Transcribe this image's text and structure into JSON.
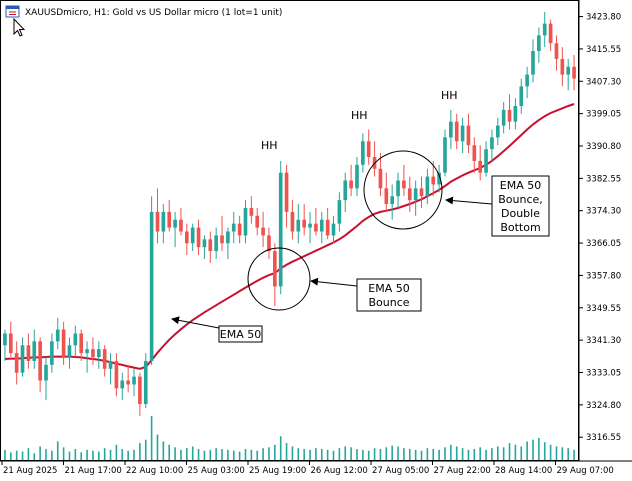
{
  "window": {
    "title": "XAUUSDmicro, H1:  Gold vs US Dollar micro (1 lot=1 unit)",
    "icon": "chart-window-icon",
    "cursor": "mouse-pointer-icon"
  },
  "colors": {
    "bull": "#26a69a",
    "bear": "#ef5350",
    "ema": "#c8102e",
    "volume": "#26a69a",
    "axis": "#000000",
    "background": "#ffffff"
  },
  "chart_data": {
    "type": "candlestick",
    "symbol": "XAUUSDmicro",
    "timeframe": "H1",
    "ylim": [
      3311.0,
      3427.0
    ],
    "y_ticks": [
      "3423.80",
      "3415.55",
      "3407.30",
      "3399.05",
      "3390.80",
      "3382.55",
      "3374.30",
      "3366.05",
      "3357.80",
      "3349.55",
      "3341.30",
      "3333.05",
      "3324.80",
      "3316.55"
    ],
    "x_ticks": [
      "21 Aug 2025",
      "21 Aug 17:00",
      "22 Aug 10:00",
      "25 Aug 03:00",
      "25 Aug 19:00",
      "26 Aug 12:00",
      "27 Aug 05:00",
      "27 Aug 22:00",
      "28 Aug 14:00",
      "29 Aug 07:00"
    ],
    "candles": [
      [
        3340,
        3344,
        3336,
        3343
      ],
      [
        3343,
        3346,
        3337,
        3338
      ],
      [
        3338,
        3341,
        3330,
        3333
      ],
      [
        3333,
        3342,
        3332,
        3340
      ],
      [
        3340,
        3343,
        3334,
        3336
      ],
      [
        3336,
        3344,
        3334,
        3341
      ],
      [
        3341,
        3342,
        3328,
        3331
      ],
      [
        3331,
        3337,
        3326,
        3335
      ],
      [
        3335,
        3343,
        3333,
        3341
      ],
      [
        3341,
        3347,
        3339,
        3344
      ],
      [
        3344,
        3346,
        3335,
        3337
      ],
      [
        3337,
        3342,
        3334,
        3340
      ],
      [
        3340,
        3345,
        3337,
        3343
      ],
      [
        3343,
        3344,
        3336,
        3338
      ],
      [
        3338,
        3341,
        3333,
        3339
      ],
      [
        3339,
        3342,
        3335,
        3337
      ],
      [
        3337,
        3341,
        3334,
        3339
      ],
      [
        3339,
        3340,
        3332,
        3334
      ],
      [
        3334,
        3338,
        3330,
        3336
      ],
      [
        3336,
        3338,
        3327,
        3329
      ],
      [
        3329,
        3333,
        3326,
        3331
      ],
      [
        3331,
        3335,
        3328,
        3330
      ],
      [
        3330,
        3334,
        3327,
        3332
      ],
      [
        3332,
        3333,
        3322,
        3325
      ],
      [
        3325,
        3338,
        3324,
        3336
      ],
      [
        3336,
        3378,
        3335,
        3374
      ],
      [
        3374,
        3380,
        3366,
        3369
      ],
      [
        3369,
        3376,
        3366,
        3374
      ],
      [
        3374,
        3377,
        3369,
        3370
      ],
      [
        3370,
        3374,
        3365,
        3372
      ],
      [
        3372,
        3375,
        3368,
        3369
      ],
      [
        3369,
        3371,
        3363,
        3366
      ],
      [
        3366,
        3371,
        3364,
        3370
      ],
      [
        3370,
        3372,
        3363,
        3365
      ],
      [
        3365,
        3368,
        3362,
        3367
      ],
      [
        3367,
        3369,
        3361,
        3364
      ],
      [
        3364,
        3370,
        3362,
        3368
      ],
      [
        3368,
        3373,
        3364,
        3366
      ],
      [
        3366,
        3370,
        3362,
        3369
      ],
      [
        3369,
        3374,
        3366,
        3371
      ],
      [
        3371,
        3373,
        3366,
        3368
      ],
      [
        3368,
        3377,
        3366,
        3375
      ],
      [
        3375,
        3378,
        3371,
        3373
      ],
      [
        3373,
        3375,
        3368,
        3370
      ],
      [
        3370,
        3374,
        3365,
        3368
      ],
      [
        3368,
        3370,
        3362,
        3364
      ],
      [
        3364,
        3366,
        3350,
        3355
      ],
      [
        3355,
        3387,
        3353,
        3384
      ],
      [
        3384,
        3386,
        3370,
        3374
      ],
      [
        3374,
        3377,
        3367,
        3369
      ],
      [
        3369,
        3376,
        3366,
        3372
      ],
      [
        3372,
        3376,
        3368,
        3370
      ],
      [
        3370,
        3374,
        3366,
        3371
      ],
      [
        3371,
        3375,
        3368,
        3369
      ],
      [
        3369,
        3374,
        3366,
        3372
      ],
      [
        3372,
        3375,
        3367,
        3368
      ],
      [
        3368,
        3373,
        3366,
        3371
      ],
      [
        3371,
        3379,
        3369,
        3377
      ],
      [
        3377,
        3384,
        3374,
        3382
      ],
      [
        3382,
        3386,
        3378,
        3380
      ],
      [
        3380,
        3388,
        3378,
        3386
      ],
      [
        3386,
        3394,
        3384,
        3392
      ],
      [
        3392,
        3395,
        3386,
        3388
      ],
      [
        3388,
        3392,
        3383,
        3385
      ],
      [
        3385,
        3389,
        3378,
        3380
      ],
      [
        3380,
        3384,
        3374,
        3376
      ],
      [
        3376,
        3381,
        3372,
        3378
      ],
      [
        3378,
        3384,
        3375,
        3382
      ],
      [
        3382,
        3386,
        3378,
        3380
      ],
      [
        3380,
        3383,
        3374,
        3377
      ],
      [
        3377,
        3382,
        3373,
        3380
      ],
      [
        3380,
        3383,
        3375,
        3378
      ],
      [
        3378,
        3385,
        3376,
        3383
      ],
      [
        3383,
        3387,
        3378,
        3381
      ],
      [
        3381,
        3386,
        3379,
        3384
      ],
      [
        3384,
        3395,
        3383,
        3393
      ],
      [
        3393,
        3400,
        3390,
        3397
      ],
      [
        3397,
        3399,
        3390,
        3392
      ],
      [
        3392,
        3398,
        3389,
        3396
      ],
      [
        3396,
        3399,
        3389,
        3391
      ],
      [
        3391,
        3393,
        3384,
        3387
      ],
      [
        3387,
        3391,
        3382,
        3384
      ],
      [
        3384,
        3392,
        3383,
        3390
      ],
      [
        3390,
        3395,
        3387,
        3393
      ],
      [
        3393,
        3398,
        3391,
        3396
      ],
      [
        3396,
        3402,
        3394,
        3400
      ],
      [
        3400,
        3404,
        3395,
        3397
      ],
      [
        3397,
        3403,
        3395,
        3401
      ],
      [
        3401,
        3408,
        3399,
        3406
      ],
      [
        3406,
        3411,
        3403,
        3409
      ],
      [
        3409,
        3418,
        3407,
        3415
      ],
      [
        3415,
        3421,
        3412,
        3419
      ],
      [
        3419,
        3425,
        3416,
        3422
      ],
      [
        3422,
        3423,
        3415,
        3417
      ],
      [
        3417,
        3419,
        3410,
        3413
      ],
      [
        3413,
        3416,
        3406,
        3409
      ],
      [
        3409,
        3413,
        3405,
        3411
      ],
      [
        3411,
        3414,
        3405,
        3408
      ]
    ],
    "ema_50": [
      3336.5,
      3336.6,
      3336.6,
      3336.7,
      3336.8,
      3336.9,
      3336.9,
      3337.0,
      3337.1,
      3337.1,
      3337.1,
      3337.1,
      3337.0,
      3336.9,
      3336.7,
      3336.5,
      3336.3,
      3336.0,
      3335.7,
      3335.3,
      3335.0,
      3334.6,
      3334.3,
      3334.0,
      3334.5,
      3336.2,
      3338.1,
      3339.8,
      3341.4,
      3342.8,
      3344.1,
      3345.3,
      3346.4,
      3347.4,
      3348.4,
      3349.3,
      3350.2,
      3351.1,
      3352.0,
      3352.9,
      3353.8,
      3354.7,
      3355.6,
      3356.4,
      3357.2,
      3357.9,
      3358.4,
      3359.6,
      3360.5,
      3361.3,
      3362.0,
      3362.7,
      3363.4,
      3364.1,
      3364.8,
      3365.5,
      3366.2,
      3367.0,
      3368.0,
      3369.2,
      3370.4,
      3371.7,
      3372.7,
      3373.5,
      3374.0,
      3374.3,
      3374.6,
      3375.0,
      3375.5,
      3376.0,
      3376.6,
      3377.2,
      3378.0,
      3378.8,
      3379.6,
      3380.6,
      3381.7,
      3382.5,
      3383.3,
      3384.0,
      3384.6,
      3385.2,
      3386.0,
      3387.0,
      3388.2,
      3389.5,
      3390.8,
      3392.2,
      3393.6,
      3395.0,
      3396.3,
      3397.4,
      3398.4,
      3399.2,
      3399.8,
      3400.4,
      3401.0,
      3401.5
    ],
    "volume": [
      12,
      9,
      11,
      10,
      14,
      8,
      16,
      13,
      11,
      22,
      15,
      10,
      13,
      9,
      12,
      11,
      10,
      14,
      12,
      18,
      13,
      11,
      12,
      20,
      24,
      52,
      30,
      22,
      18,
      15,
      12,
      14,
      16,
      13,
      11,
      12,
      14,
      13,
      12,
      11,
      10,
      13,
      12,
      11,
      14,
      15,
      18,
      28,
      20,
      16,
      14,
      13,
      12,
      14,
      13,
      12,
      11,
      14,
      16,
      15,
      13,
      12,
      11,
      14,
      13,
      15,
      17,
      16,
      14,
      13,
      12,
      11,
      14,
      13,
      12,
      15,
      18,
      16,
      14,
      12,
      13,
      15,
      12,
      14,
      16,
      15,
      20,
      18,
      16,
      22,
      24,
      26,
      21,
      18,
      16,
      15,
      14,
      12
    ]
  },
  "annotations": {
    "hh_1": "HH",
    "hh_2": "HH",
    "hh_3": "HH",
    "ema_label": "EMA 50",
    "bounce_label_line1": "EMA 50",
    "bounce_label_line2": "Bounce",
    "double_label_line1": "EMA 50",
    "double_label_line2": "Bounce,",
    "double_label_line3": "Double",
    "double_label_line4": "Bottom"
  }
}
